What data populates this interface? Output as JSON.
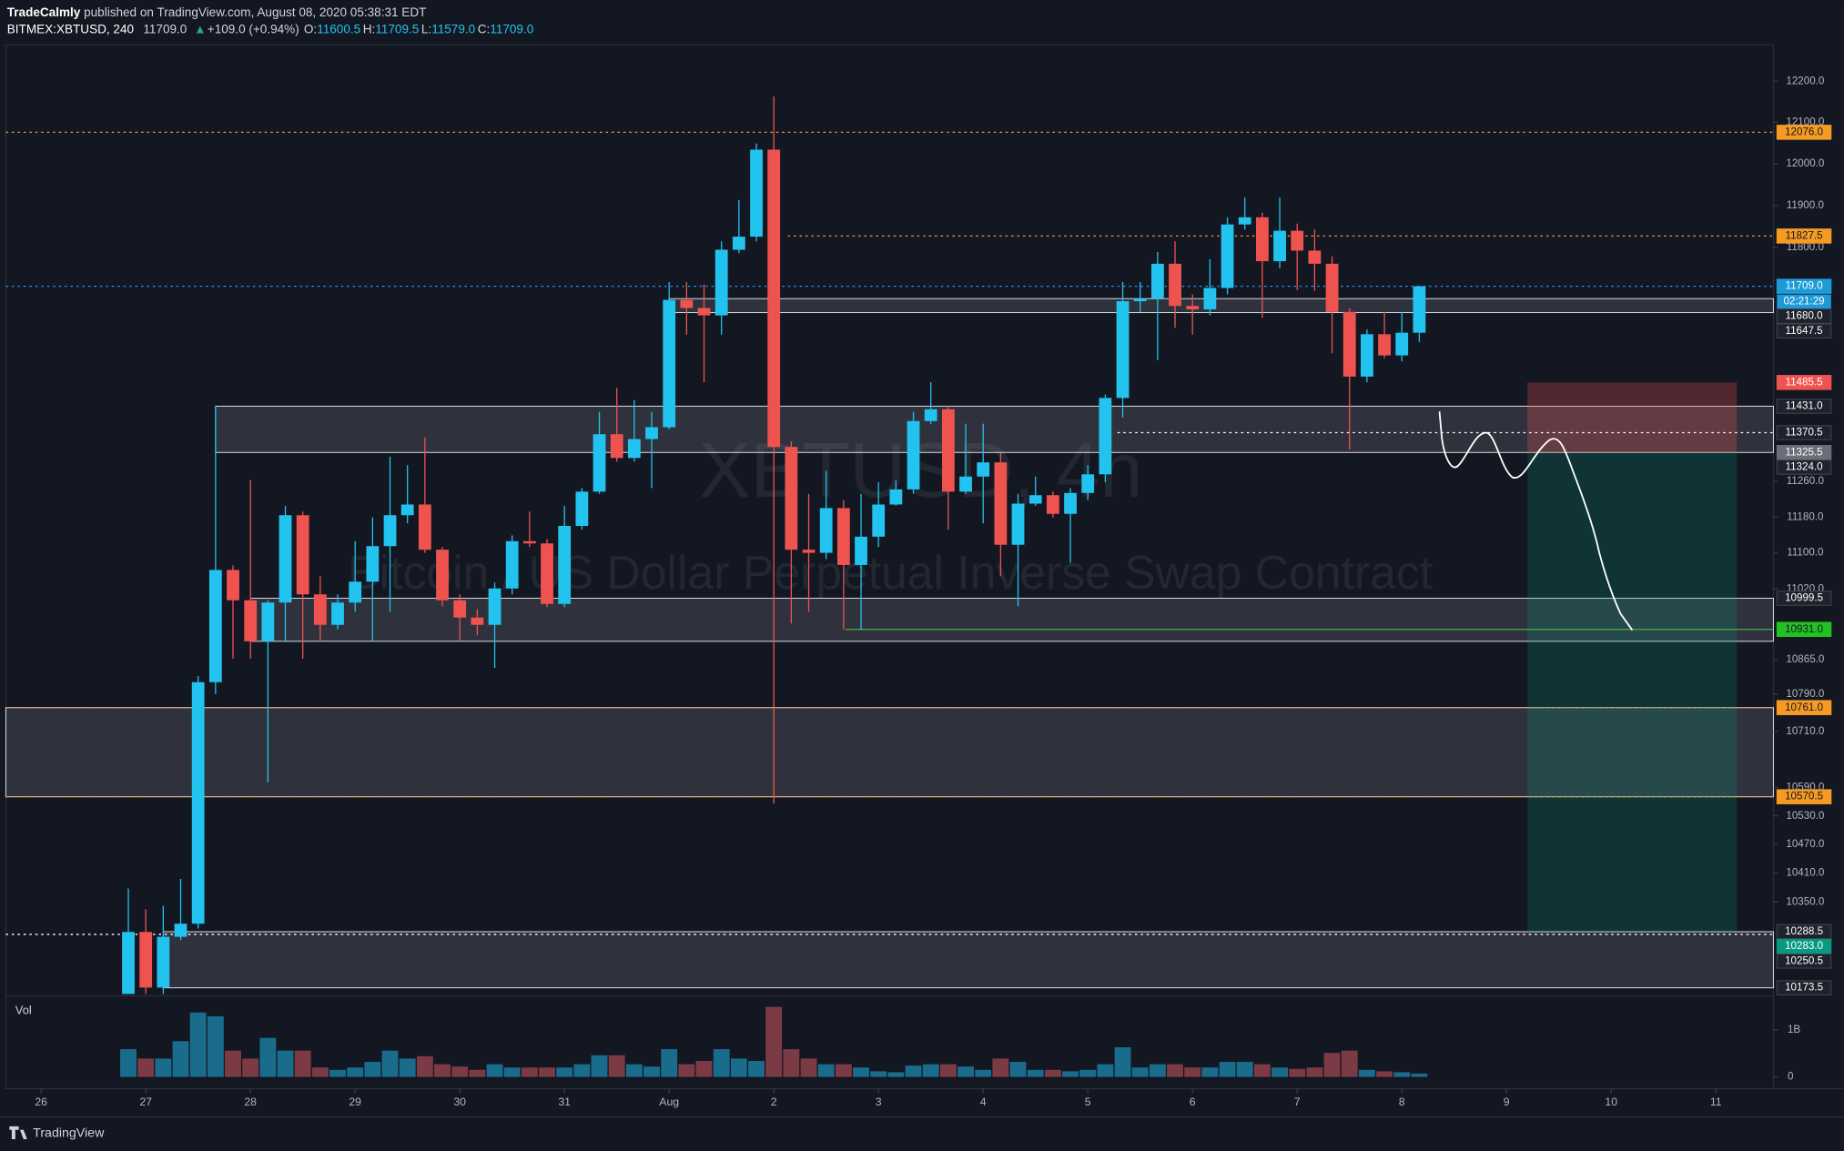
{
  "header": {
    "author": "TradeCalmly",
    "published": "published on TradingView.com, August 08, 2020 05:38:31 EDT"
  },
  "chart_data": {
    "type": "candlestick",
    "symbol": "BITMEX:XBTUSD, 240",
    "last": "11709.0",
    "change": "+109.0 (+0.94%)",
    "ohlc_legend": [
      [
        "O:",
        "11600.5"
      ],
      [
        "H:",
        "11709.5"
      ],
      [
        "L:",
        "11579.0"
      ],
      [
        "C:",
        "11709.0"
      ]
    ],
    "watermark": [
      "XBTUSD, 4h",
      "Bitcoin / US Dollar Perpetual Inverse Swap Contract"
    ],
    "volume_title": "Vol",
    "log_scale": true,
    "grid": false,
    "up_color": "#22c3ee",
    "down_color": "#ef5350",
    "volume_up_color": "#1a6c8c",
    "volume_down_color": "#7c3a45",
    "xlim": [
      -7.02,
      94.3
    ],
    "xticks": [
      {
        "value": -5,
        "label": "26"
      },
      {
        "value": 1,
        "label": "27"
      },
      {
        "value": 7,
        "label": "28"
      },
      {
        "value": 13,
        "label": "29"
      },
      {
        "value": 19,
        "label": "30"
      },
      {
        "value": 25,
        "label": "31"
      },
      {
        "value": 31,
        "label": "Aug"
      },
      {
        "value": 37,
        "label": "2"
      },
      {
        "value": 43,
        "label": "3"
      },
      {
        "value": 49,
        "label": "4"
      },
      {
        "value": 55,
        "label": "5"
      },
      {
        "value": 61,
        "label": "6"
      },
      {
        "value": 67,
        "label": "7"
      },
      {
        "value": 73,
        "label": "8"
      },
      {
        "value": 79,
        "label": "9"
      },
      {
        "value": 85,
        "label": "10"
      },
      {
        "value": 91,
        "label": "11"
      }
    ],
    "ylim": [
      10162,
      12284
    ],
    "yticks": [
      {
        "value": 12200,
        "label": "12200.0"
      },
      {
        "value": 12100,
        "label": "12100.0"
      },
      {
        "value": 12000,
        "label": "12000.0"
      },
      {
        "value": 11900,
        "label": "11900.0"
      },
      {
        "value": 11800,
        "label": "11800.0"
      },
      {
        "value": 11260,
        "label": "11260.0"
      },
      {
        "value": 11180,
        "label": "11180.0"
      },
      {
        "value": 11100,
        "label": "11100.0"
      },
      {
        "value": 11020,
        "label": "11020.0"
      },
      {
        "value": 10865,
        "label": "10865.0"
      },
      {
        "value": 10790,
        "label": "10790.0"
      },
      {
        "value": 10710,
        "label": "10710.0"
      },
      {
        "value": 10590,
        "label": "10590.0"
      },
      {
        "value": 10530,
        "label": "10530.0"
      },
      {
        "value": 10470,
        "label": "10470.0"
      },
      {
        "value": 10410,
        "label": "10410.0"
      },
      {
        "value": 10350,
        "label": "10350.0"
      }
    ],
    "volume_ylim": [
      0,
      1600000000
    ],
    "volume_yticks": [
      {
        "value": 1000000000,
        "label": "1B"
      },
      0
    ],
    "open": [
      10161,
      10288,
      10174,
      10278,
      10305,
      10816,
      11062,
      10995,
      10905,
      10990,
      11184,
      11008,
      10941,
      10990,
      11036,
      11115,
      11184,
      11208,
      11107,
      10995,
      10957,
      10941,
      11021,
      11126,
      11121,
      10987,
      11160,
      11237,
      11367,
      11313,
      11356,
      11383,
      11677,
      11658,
      11641,
      11795,
      11826,
      12034,
      11338,
      11107,
      11100,
      11200,
      11073,
      11136,
      11208,
      11242,
      11397,
      11424,
      11237,
      11271,
      11303,
      11118,
      11210,
      11229,
      11187,
      11234,
      11276,
      11450,
      11674,
      11680,
      11762,
      11663,
      11655,
      11705,
      11855,
      11872,
      11768,
      11840,
      11793,
      11762,
      11649,
      11499,
      11597,
      11548,
      11600.5
    ],
    "high": [
      10378,
      10335,
      10342,
      10398,
      10829,
      11431,
      11072,
      11263,
      10995,
      11205,
      11192,
      11048,
      11008,
      11126,
      11179,
      11316,
      11297,
      11359,
      11113,
      11008,
      10975,
      11034,
      11139,
      11192,
      11131,
      11205,
      11245,
      11418,
      11473,
      11445,
      11418,
      11719,
      11719,
      11714,
      11815,
      11913,
      12049,
      12163,
      11351,
      11232,
      11284,
      11218,
      11232,
      11258,
      11263,
      11418,
      11486,
      11431,
      11391,
      11391,
      11324,
      11232,
      11271,
      11237,
      11245,
      11297,
      11458,
      11719,
      11719,
      11790,
      11815,
      11690,
      11773,
      11872,
      11919,
      11883,
      11919,
      11857,
      11843,
      11779,
      11657,
      11608,
      11649,
      11649,
      11709.5
    ],
    "low": [
      10161,
      10161,
      10161,
      10271,
      10295,
      10790,
      10867,
      10867,
      10601,
      10905,
      10867,
      10905,
      10931,
      10970,
      10905,
      10970,
      11166,
      11100,
      10982,
      10905,
      10918,
      10847,
      11008,
      11113,
      10980,
      10980,
      11152,
      11232,
      11305,
      11305,
      11245,
      11378,
      11596,
      11486,
      11596,
      11787,
      11815,
      10556,
      10944,
      10970,
      11086,
      10931,
      10931,
      11113,
      11205,
      11232,
      11391,
      11152,
      11232,
      11166,
      11048,
      10982,
      11205,
      11179,
      11078,
      11218,
      11258,
      11405,
      11649,
      11537,
      11612,
      11596,
      11641,
      11690,
      11843,
      11635,
      11751,
      11700,
      11698,
      11553,
      11332,
      11486,
      11542,
      11534,
      11579
    ],
    "close": [
      10288,
      10174,
      10278,
      10305,
      10816,
      11062,
      10995,
      10905,
      10990,
      11184,
      11008,
      10941,
      10990,
      11036,
      11115,
      11184,
      11208,
      11107,
      10995,
      10957,
      10941,
      11021,
      11126,
      11121,
      10987,
      11160,
      11237,
      11367,
      11313,
      11356,
      11383,
      11677,
      11658,
      11641,
      11795,
      11826,
      12034,
      11338,
      11107,
      11100,
      11200,
      11073,
      11136,
      11208,
      11242,
      11397,
      11424,
      11237,
      11271,
      11303,
      11118,
      11210,
      11229,
      11187,
      11234,
      11276,
      11450,
      11674,
      11680,
      11762,
      11663,
      11655,
      11705,
      11855,
      11872,
      11768,
      11840,
      11793,
      11762,
      11649,
      11499,
      11597,
      11548,
      11600.5,
      11709
    ],
    "volume": [
      590000000,
      390000000,
      390000000,
      760000000,
      1370000000,
      1290000000,
      560000000,
      390000000,
      830000000,
      560000000,
      560000000,
      200000000,
      150000000,
      200000000,
      320000000,
      560000000,
      390000000,
      440000000,
      270000000,
      220000000,
      150000000,
      270000000,
      200000000,
      200000000,
      200000000,
      200000000,
      270000000,
      460000000,
      460000000,
      270000000,
      220000000,
      590000000,
      270000000,
      340000000,
      590000000,
      390000000,
      340000000,
      1490000000,
      590000000,
      390000000,
      270000000,
      270000000,
      200000000,
      120000000,
      100000000,
      240000000,
      270000000,
      270000000,
      220000000,
      150000000,
      390000000,
      320000000,
      150000000,
      150000000,
      120000000,
      150000000,
      270000000,
      630000000,
      200000000,
      270000000,
      270000000,
      200000000,
      200000000,
      320000000,
      320000000,
      270000000,
      200000000,
      170000000,
      200000000,
      510000000,
      560000000,
      150000000,
      120000000,
      100000000,
      70000000
    ],
    "zones": [
      {
        "top": 11680,
        "bottom": 11647.5,
        "from": 31
      },
      {
        "top": 11431,
        "bottom": 11325.5,
        "from": 5
      },
      {
        "top": 10999.5,
        "bottom": 10905,
        "from": 7
      },
      {
        "top": 10761,
        "bottom": 10570.5,
        "from": -7.02
      },
      {
        "top": 10288.5,
        "bottom": 10173.5,
        "from": 2
      }
    ],
    "lines": [
      {
        "value": 12076,
        "color": "#f59a23",
        "from": -7.02
      },
      {
        "value": 11827.5,
        "color": "#f59a23",
        "from": 37.8
      },
      {
        "value": 11709,
        "color": "#2196f3",
        "from": -7.02
      },
      {
        "value": 11370.5,
        "color": "#ffffff",
        "from": 56.7
      },
      {
        "value": 10931,
        "color": "#4caf50",
        "from": 41.1
      },
      {
        "value": 10761,
        "color": "#f59a23",
        "from": -7.02
      },
      {
        "value": 10570.5,
        "color": "#f59a23",
        "from": -7.02
      },
      {
        "value": 10283,
        "color": "#ffffff",
        "from": -7.02
      }
    ],
    "price_labels": [
      {
        "value": 12076,
        "label": "12076.0",
        "color": "#f59a23"
      },
      {
        "value": 11827.5,
        "label": "11827.5",
        "color": "#f59a23"
      },
      {
        "value": 11709,
        "label": "11709.0",
        "color": "#1e9bd7",
        "countdown": "02:21:29"
      },
      {
        "value": 11680,
        "label": "11680.0",
        "color": "#1e222d"
      },
      {
        "value": 11647.5,
        "label": "11647.5",
        "color": "#1e222d"
      },
      {
        "value": 11485.5,
        "label": "11485.5",
        "color": "#ef5350"
      },
      {
        "value": 11431,
        "label": "11431.0",
        "color": "#1e222d"
      },
      {
        "value": 11370.5,
        "label": "11370.5",
        "color": "#1e222d"
      },
      {
        "value": 11325.5,
        "label": "11325.5",
        "color": "#6b6e78"
      },
      {
        "value": 11324,
        "label": "11324.0",
        "color": "#1e222d"
      },
      {
        "value": 10999.5,
        "label": "10999.5",
        "color": "#1e222d"
      },
      {
        "value": 10931,
        "label": "10931.0",
        "color": "#22c222"
      },
      {
        "value": 10761,
        "label": "10761.0",
        "color": "#f59a23"
      },
      {
        "value": 10570.5,
        "label": "10570.5",
        "color": "#f59a23"
      },
      {
        "value": 10288.5,
        "label": "10288.5",
        "color": "#1e222d"
      },
      {
        "value": 10283,
        "label": "10283.0",
        "color": "#089981"
      },
      {
        "value": 10250.5,
        "label": "10250.5",
        "color": "#1e222d"
      },
      {
        "value": 10173.5,
        "label": "10173.5",
        "color": "#1e222d"
      }
    ],
    "position": {
      "stop": 11485.5,
      "entry": 11325.5,
      "target": 10288.5,
      "from": 80.2,
      "to": 92.2
    }
  },
  "footer": {
    "brand": "TradingView"
  }
}
